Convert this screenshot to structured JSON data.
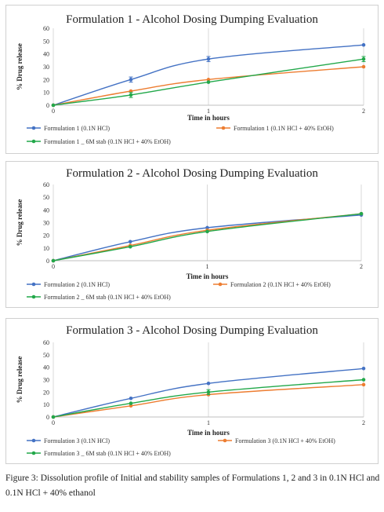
{
  "chart_data": [
    {
      "type": "line",
      "title": "Formulation 1 - Alcohol Dosing Dumping Evaluation",
      "xlabel": "Time in hours",
      "ylabel": "% Drug release",
      "x": [
        0,
        1,
        2
      ],
      "xticks": [
        "0",
        "1",
        "2"
      ],
      "ylim": [
        0,
        60
      ],
      "yticks": [
        "0",
        "10",
        "20",
        "30",
        "40",
        "50",
        "60"
      ],
      "grid": "vertical",
      "legend_position": "bottom",
      "series": [
        {
          "name": "Formulation 1 (0.1N HCl)",
          "color": "#4472C4",
          "x": [
            0,
            0.5,
            1,
            2
          ],
          "values": [
            0,
            20,
            36,
            47
          ],
          "error": [
            0,
            2,
            2,
            0
          ]
        },
        {
          "name": "Formulation 1 (0.1N HCl + 40% EtOH)",
          "color": "#ED7D31",
          "x": [
            0,
            0.5,
            1,
            2
          ],
          "values": [
            0,
            11,
            20,
            30
          ],
          "error": [
            0,
            0,
            0,
            0
          ]
        },
        {
          "name": "Formulation 1 _ 6M stab (0.1N HCl + 40% EtOH)",
          "color": "#22A84A",
          "x": [
            0,
            0.5,
            1,
            2
          ],
          "values": [
            0,
            8,
            18,
            36
          ],
          "error": [
            0,
            2,
            0,
            2
          ]
        }
      ]
    },
    {
      "type": "line",
      "title": "Formulation 2 - Alcohol Dosing Dumping Evaluation",
      "xlabel": "Time in hours",
      "ylabel": "% Drug release",
      "x": [
        0,
        1,
        2
      ],
      "xticks": [
        "0",
        "1",
        "2"
      ],
      "ylim": [
        0,
        60
      ],
      "yticks": [
        "0",
        "10",
        "20",
        "30",
        "40",
        "50",
        "60"
      ],
      "grid": "vertical",
      "legend_position": "bottom",
      "series": [
        {
          "name": "Formulation 2 (0.1N HCl)",
          "color": "#4472C4",
          "x": [
            0,
            0.5,
            1,
            2
          ],
          "values": [
            0,
            15,
            26,
            36
          ],
          "error": [
            0,
            0,
            0,
            0
          ]
        },
        {
          "name": "Formulation 2 (0.1N HCl + 40% EtOH)",
          "color": "#ED7D31",
          "x": [
            0,
            0.5,
            1,
            2
          ],
          "values": [
            0,
            12,
            24,
            37
          ],
          "error": [
            0,
            0,
            0,
            0
          ]
        },
        {
          "name": "Formulation 2 _ 6M stab (0.1N HCl + 40% EtOH)",
          "color": "#22A84A",
          "x": [
            0,
            0.5,
            1,
            2
          ],
          "values": [
            0,
            11,
            23,
            37
          ],
          "error": [
            0,
            0,
            0,
            0
          ]
        }
      ]
    },
    {
      "type": "line",
      "title": "Formulation 3 - Alcohol Dosing Dumping Evaluation",
      "xlabel": "Time in hours",
      "ylabel": "% Drug release",
      "x": [
        0,
        1,
        2
      ],
      "xticks": [
        "0",
        "1",
        "2"
      ],
      "ylim": [
        0,
        60
      ],
      "yticks": [
        "0",
        "10",
        "20",
        "30",
        "40",
        "50",
        "60"
      ],
      "grid": "vertical",
      "legend_position": "bottom",
      "series": [
        {
          "name": "Formulation 3 (0.1N HCl)",
          "color": "#4472C4",
          "x": [
            0,
            0.5,
            1,
            2
          ],
          "values": [
            0,
            15,
            27,
            39
          ],
          "error": [
            0,
            0,
            0,
            0
          ]
        },
        {
          "name": "Formulation 3 (0.1N HCl + 40% EtOH)",
          "color": "#ED7D31",
          "x": [
            0,
            0.5,
            1,
            2
          ],
          "values": [
            0,
            9,
            18,
            26
          ],
          "error": [
            0,
            0,
            0,
            0
          ]
        },
        {
          "name": "Formulation 3 _ 6M stab (0.1N HCl + 40% EtOH)",
          "color": "#22A84A",
          "x": [
            0,
            0.5,
            1,
            2
          ],
          "values": [
            0,
            11,
            20,
            30
          ],
          "error": [
            0,
            0,
            2,
            0
          ]
        }
      ]
    }
  ],
  "caption": "Figure 3: Dissolution profile of Initial and stability samples of Formulations 1, 2 and 3 in 0.1N HCl and 0.1N HCl + 40% ethanol"
}
